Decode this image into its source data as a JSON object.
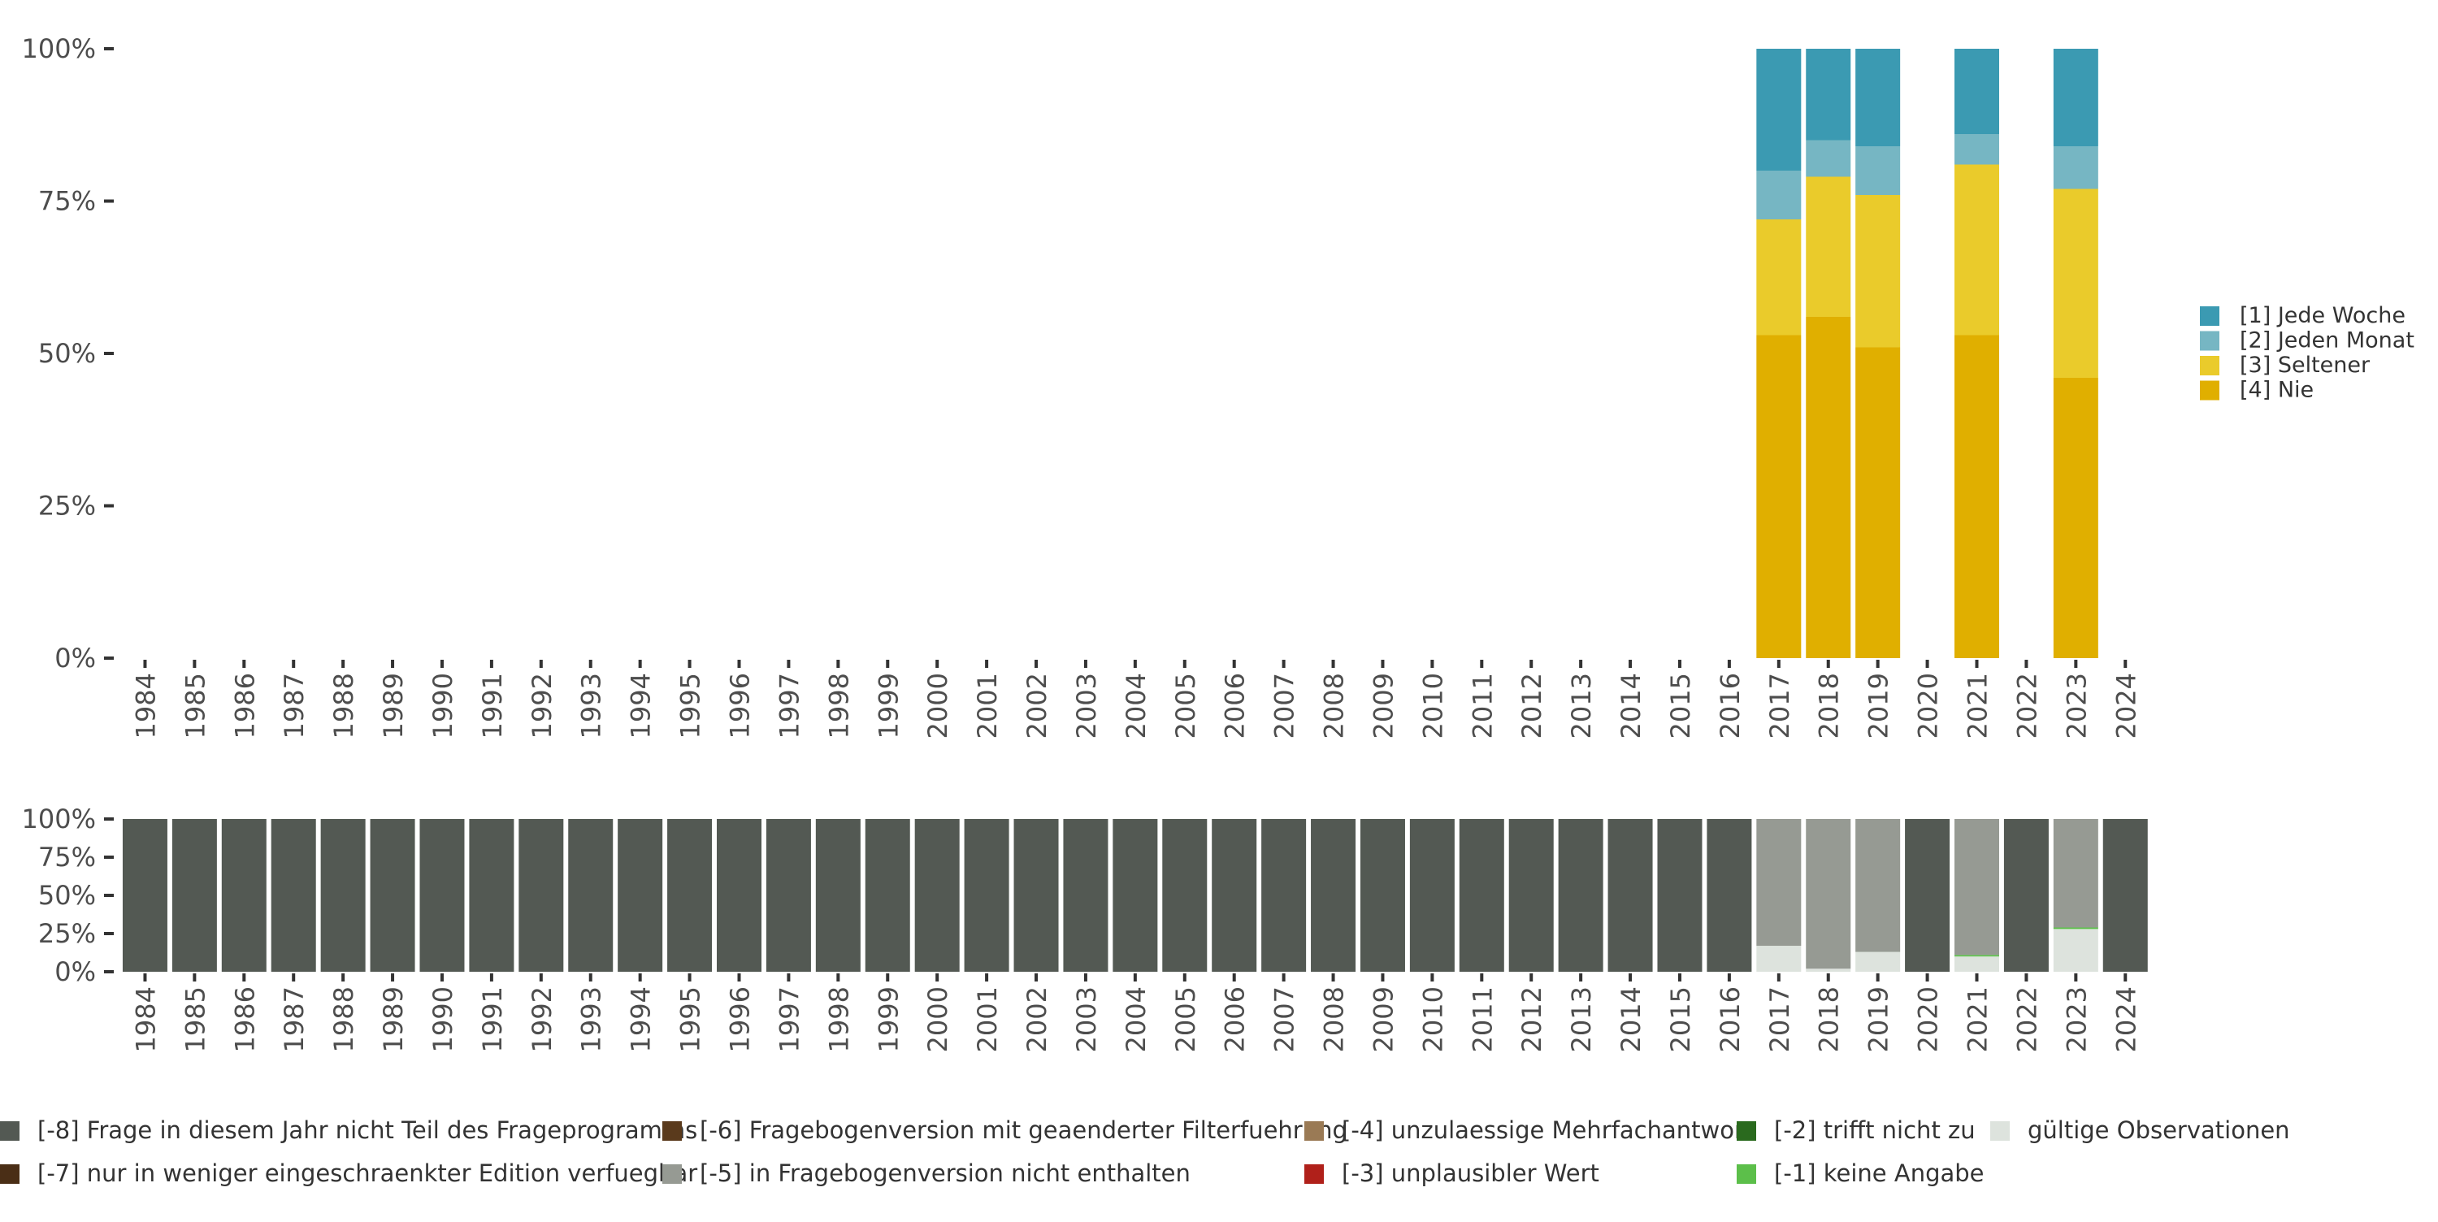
{
  "chart_data": [
    {
      "type": "bar",
      "stacked": true,
      "categories": [
        "1984",
        "1985",
        "1986",
        "1987",
        "1988",
        "1989",
        "1990",
        "1991",
        "1992",
        "1993",
        "1994",
        "1995",
        "1996",
        "1997",
        "1998",
        "1999",
        "2000",
        "2001",
        "2002",
        "2003",
        "2004",
        "2005",
        "2006",
        "2007",
        "2008",
        "2009",
        "2010",
        "2011",
        "2012",
        "2013",
        "2014",
        "2015",
        "2016",
        "2017",
        "2018",
        "2019",
        "2020",
        "2021",
        "2022",
        "2023",
        "2024"
      ],
      "y_ticks": [
        "0%",
        "25%",
        "50%",
        "75%",
        "100%"
      ],
      "ylim": [
        0,
        100
      ],
      "grid": false,
      "legend_position": "right",
      "series": [
        {
          "name": "[4] Nie",
          "color": "#E0AF00",
          "values": {
            "2017": 53,
            "2018": 56,
            "2019": 51,
            "2021": 53,
            "2023": 46
          }
        },
        {
          "name": "[3] Seltener",
          "color": "#EACB2B",
          "values": {
            "2017": 19,
            "2018": 23,
            "2019": 25,
            "2021": 28,
            "2023": 31
          }
        },
        {
          "name": "[2] Jeden Monat",
          "color": "#76B6C3",
          "values": {
            "2017": 8,
            "2018": 6,
            "2019": 8,
            "2021": 5,
            "2023": 7
          }
        },
        {
          "name": "[1] Jede Woche",
          "color": "#3B9AB2",
          "values": {
            "2017": 20,
            "2018": 15,
            "2019": 16,
            "2021": 14,
            "2023": 16
          }
        }
      ],
      "legend_order": [
        "[1] Jede Woche",
        "[2] Jeden Monat",
        "[3] Seltener",
        "[4] Nie"
      ]
    },
    {
      "type": "bar",
      "stacked": true,
      "categories": [
        "1984",
        "1985",
        "1986",
        "1987",
        "1988",
        "1989",
        "1990",
        "1991",
        "1992",
        "1993",
        "1994",
        "1995",
        "1996",
        "1997",
        "1998",
        "1999",
        "2000",
        "2001",
        "2002",
        "2003",
        "2004",
        "2005",
        "2006",
        "2007",
        "2008",
        "2009",
        "2010",
        "2011",
        "2012",
        "2013",
        "2014",
        "2015",
        "2016",
        "2017",
        "2018",
        "2019",
        "2020",
        "2021",
        "2022",
        "2023",
        "2024"
      ],
      "y_ticks": [
        "0%",
        "25%",
        "50%",
        "75%",
        "100%"
      ],
      "ylim": [
        0,
        100
      ],
      "grid": false,
      "legend_position": "bottom",
      "series": [
        {
          "name": "gültige Observationen",
          "color": "#DDE3DD",
          "values": {
            "2017": 17,
            "2018": 2,
            "2019": 13,
            "2021": 10,
            "2023": 28
          }
        },
        {
          "name": "[-1] keine Angabe",
          "color": "#5CBF4A",
          "values": {
            "2017": 0,
            "2018": 0,
            "2019": 0,
            "2021": 1,
            "2023": 1
          }
        },
        {
          "name": "[-5] in Fragebogenversion nicht enthalten",
          "color": "#969A93",
          "values": {
            "2017": 83,
            "2018": 98,
            "2019": 87,
            "2021": 89,
            "2023": 71
          }
        },
        {
          "name": "[-8] Frage in diesem Jahr nicht Teil des Frageprogramms",
          "color": "#535953",
          "values": {
            "1984": 100,
            "1985": 100,
            "1986": 100,
            "1987": 100,
            "1988": 100,
            "1989": 100,
            "1990": 100,
            "1991": 100,
            "1992": 100,
            "1993": 100,
            "1994": 100,
            "1995": 100,
            "1996": 100,
            "1997": 100,
            "1998": 100,
            "1999": 100,
            "2000": 100,
            "2001": 100,
            "2002": 100,
            "2003": 100,
            "2004": 100,
            "2005": 100,
            "2006": 100,
            "2007": 100,
            "2008": 100,
            "2009": 100,
            "2010": 100,
            "2011": 100,
            "2012": 100,
            "2013": 100,
            "2014": 100,
            "2015": 100,
            "2016": 100,
            "2020": 100,
            "2022": 100,
            "2024": 100
          }
        }
      ],
      "legend": [
        {
          "name": "[-8] Frage in diesem Jahr nicht Teil des Frageprogramms",
          "color": "#535953"
        },
        {
          "name": "[-6] Fragebogenversion mit geaenderter Filterfuehrung",
          "color": "#5A3A1C"
        },
        {
          "name": "[-4] unzulaessige Mehrfachantwort",
          "color": "#9A7A55"
        },
        {
          "name": "[-2] trifft nicht zu",
          "color": "#2A6A1E"
        },
        {
          "name": "gültige Observationen",
          "color": "#DDE3DD"
        },
        {
          "name": "[-7] nur in weniger eingeschraenkter Edition verfuegbar",
          "color": "#4A2E16"
        },
        {
          "name": "[-5] in Fragebogenversion nicht enthalten",
          "color": "#969A93"
        },
        {
          "name": "[-3] unplausibler Wert",
          "color": "#B0201A"
        },
        {
          "name": "[-1] keine Angabe",
          "color": "#5CBF4A"
        }
      ]
    }
  ]
}
